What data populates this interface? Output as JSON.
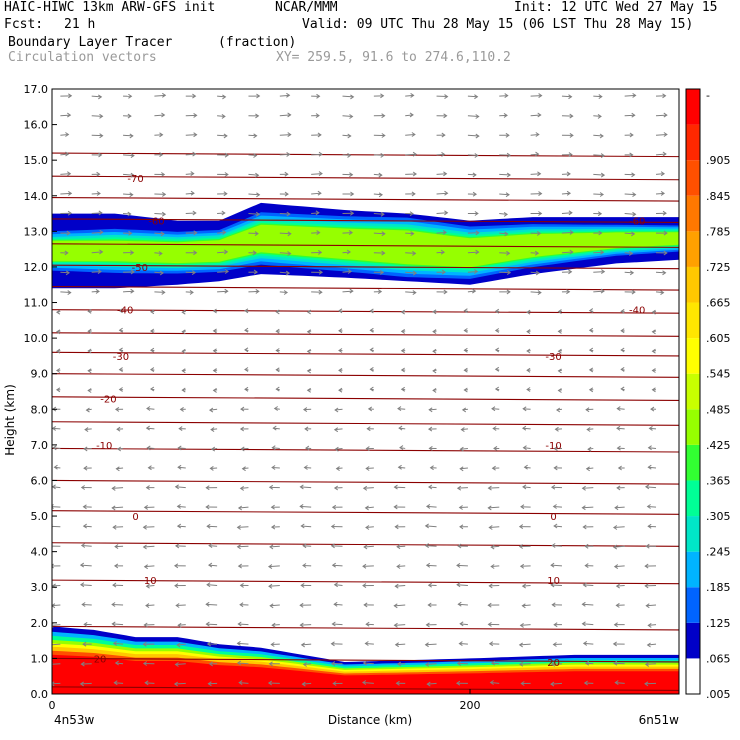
{
  "header": {
    "model": "HAIC-HIWC 13km ARW-GFS init",
    "org": "NCAR/MMM",
    "init": "Init: 12 UTC Wed 27 May 15",
    "fcst_label": "Fcst:",
    "fcst_value": "21 h",
    "valid": "Valid: 09 UTC Thu 28 May 15 (06 LST Thu 28 May 15)",
    "field_name": "Boundary Layer Tracer",
    "field_units": "(fraction)",
    "vectors": "Circulation vectors",
    "xy": "XY= 259.5, 91.6 to 274.6,110.2"
  },
  "colors": {
    "contour": "#8b0000",
    "vector": "#808080",
    "colorbar": [
      "#ffffff",
      "#0000c8",
      "#0064ff",
      "#00b4ff",
      "#00e6c8",
      "#00ff96",
      "#32ff32",
      "#96ff00",
      "#c8ff00",
      "#ffff00",
      "#ffe600",
      "#ffc800",
      "#ffa000",
      "#ff7800",
      "#ff5000",
      "#ff2800",
      "#ff0000"
    ]
  },
  "chart_data": {
    "type": "heatmap",
    "title": "Boundary Layer Tracer",
    "units": "(fraction)",
    "xlabel": "Distance (km)",
    "ylabel": "Height (km)",
    "xlim": [
      0,
      300
    ],
    "ylim": [
      0,
      17
    ],
    "x_ticks": [
      "0",
      "200"
    ],
    "x_end_labels": {
      "left": "4n53w",
      "right": "6n51w"
    },
    "y_ticks": [
      "0.0",
      "1.0",
      "2.0",
      "3.0",
      "4.0",
      "5.0",
      "6.0",
      "7.0",
      "8.0",
      "9.0",
      "10.0",
      "11.0",
      "12.0",
      "13.0",
      "14.0",
      "15.0",
      "16.0",
      "17.0"
    ],
    "colorbar_labels": [
      ".005",
      ".065",
      ".125",
      ".185",
      ".245",
      ".305",
      ".365",
      ".425",
      ".485",
      ".545",
      ".605",
      ".665",
      ".725",
      ".785",
      ".845",
      ".905",
      "-"
    ],
    "contour_labels": [
      {
        "value": "-70",
        "x": 40,
        "y": 14.5
      },
      {
        "value": "-60",
        "x": 50,
        "y": 13.3
      },
      {
        "value": "-60",
        "x": 280,
        "y": 13.3
      },
      {
        "value": "-50",
        "x": 42,
        "y": 12.0
      },
      {
        "value": "-40",
        "x": 35,
        "y": 10.8
      },
      {
        "value": "-40",
        "x": 280,
        "y": 10.8
      },
      {
        "value": "-30",
        "x": 33,
        "y": 9.5
      },
      {
        "value": "-30",
        "x": 240,
        "y": 9.5
      },
      {
        "value": "-20",
        "x": 27,
        "y": 8.3
      },
      {
        "value": "-10",
        "x": 25,
        "y": 7.0
      },
      {
        "value": "-10",
        "x": 240,
        "y": 7.0
      },
      {
        "value": "0",
        "x": 40,
        "y": 5.0
      },
      {
        "value": "0",
        "x": 240,
        "y": 5.0
      },
      {
        "value": "10",
        "x": 47,
        "y": 3.2
      },
      {
        "value": "10",
        "x": 240,
        "y": 3.2
      },
      {
        "value": "20",
        "x": 23,
        "y": 1.0
      },
      {
        "value": "20",
        "x": 240,
        "y": 0.9
      }
    ],
    "upper_tracer_layer": {
      "base_km": [
        11.4,
        11.4,
        11.5,
        11.6,
        11.8,
        11.7,
        11.6,
        11.5,
        11.8,
        12.1,
        12.2
      ],
      "top_km": [
        13.5,
        13.5,
        13.3,
        13.3,
        13.8,
        13.6,
        13.5,
        13.3,
        13.4,
        13.4,
        13.4
      ],
      "x_km": [
        0,
        30,
        60,
        80,
        100,
        140,
        170,
        200,
        230,
        270,
        300
      ],
      "max_fraction": 0.545
    },
    "lower_tracer_layer": {
      "x_km": [
        0,
        20,
        40,
        60,
        80,
        100,
        120,
        130,
        140,
        200,
        250,
        300
      ],
      "top_km": [
        1.9,
        1.8,
        1.6,
        1.6,
        1.4,
        1.3,
        1.1,
        1.0,
        0.9,
        1.0,
        1.1,
        1.1
      ],
      "max_fraction": 1.0
    },
    "isotherms_km": [
      0.15,
      0.95,
      1.85,
      3.15,
      4.2,
      5.1,
      5.95,
      6.85,
      7.6,
      8.3,
      8.95,
      9.55,
      10.1,
      10.75,
      11.4,
      12.0,
      12.6,
      13.3,
      13.9,
      14.5,
      15.15
    ]
  }
}
